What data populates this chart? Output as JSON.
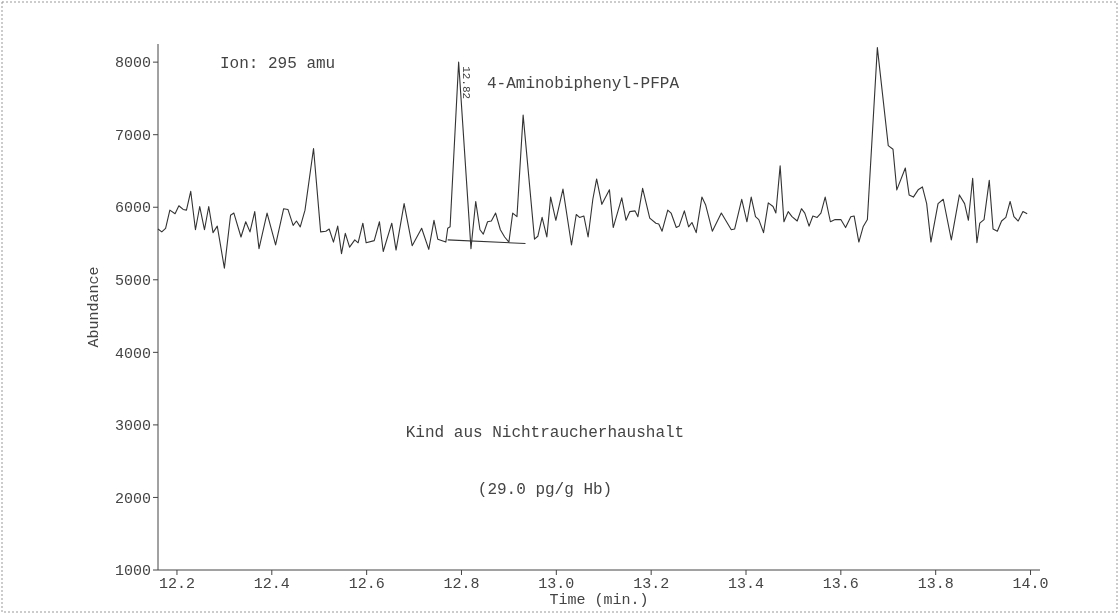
{
  "chart_data": {
    "type": "line",
    "title": "4-Aminobiphenyl-PFPA",
    "xlabel": "Time (min.)",
    "ylabel": "Abundance",
    "annotations": [
      "Ion: 295 amu",
      "Kind aus Nichtraucherhaushalt",
      "(29.0 pg/g Hb)",
      {
        "text": "12.82",
        "x": 12.794,
        "y": 8000
      }
    ],
    "xlim": [
      12.16,
      14.02
    ],
    "ylim": [
      1000,
      8250
    ],
    "xticks": [
      12.2,
      12.4,
      12.6,
      12.8,
      {
        "value": 13,
        "label": "13.0"
      },
      13.2,
      13.4,
      13.6,
      13.8,
      {
        "value": 14,
        "label": "14.0"
      }
    ],
    "yticks": [
      1000,
      2000,
      3000,
      4000,
      5000,
      6000,
      7000,
      8000
    ],
    "grid": false,
    "series": [
      {
        "color": "#333333",
        "x": [
          12.16,
          12.168,
          12.176,
          12.185,
          12.196,
          12.204,
          12.213,
          12.22,
          12.229,
          12.239,
          12.248,
          12.258,
          12.267,
          12.276,
          12.285,
          12.3,
          12.313,
          12.32,
          12.335,
          12.345,
          12.354,
          12.364,
          12.373,
          12.39,
          12.408,
          12.425,
          12.434,
          12.445,
          12.452,
          12.46,
          12.47,
          12.488,
          12.503,
          12.514,
          12.521,
          12.53,
          12.539,
          12.547,
          12.555,
          12.564,
          12.575,
          12.582,
          12.592,
          12.599,
          12.616,
          12.627,
          12.635,
          12.653,
          12.662,
          12.679,
          12.696,
          12.716,
          12.731,
          12.742,
          12.75,
          12.767,
          12.771,
          12.776,
          12.794,
          12.82,
          12.83,
          12.839,
          12.846,
          12.855,
          12.863,
          12.872,
          12.882,
          12.891,
          12.9,
          12.908,
          12.917,
          12.93,
          12.954,
          12.961,
          12.97,
          12.98,
          12.988,
          12.999,
          13.014,
          13.032,
          13.042,
          13.049,
          13.058,
          13.067,
          13.077,
          13.085,
          13.096,
          13.112,
          13.12,
          13.138,
          13.147,
          13.155,
          13.166,
          13.172,
          13.182,
          13.197,
          13.21,
          13.216,
          13.223,
          13.235,
          13.242,
          13.253,
          13.259,
          13.27,
          13.279,
          13.286,
          13.295,
          13.307,
          13.315,
          13.329,
          13.348,
          13.369,
          13.376,
          13.391,
          13.402,
          13.411,
          13.42,
          13.427,
          13.437,
          13.447,
          13.457,
          13.463,
          13.472,
          13.48,
          13.489,
          13.497,
          13.508,
          13.517,
          13.524,
          13.533,
          13.541,
          13.55,
          13.558,
          13.567,
          13.578,
          13.588,
          13.6,
          13.61,
          13.621,
          13.628,
          13.638,
          13.647,
          13.656,
          13.677,
          13.7,
          13.71,
          13.718,
          13.736,
          13.744,
          13.753,
          13.763,
          13.772,
          13.781,
          13.79,
          13.805,
          13.816,
          13.833,
          13.85,
          13.861,
          13.869,
          13.878,
          13.887,
          13.893,
          13.902,
          13.913,
          13.921,
          13.93,
          13.939,
          13.948,
          13.957,
          13.965,
          13.974,
          13.984,
          13.993
        ],
        "values": [
          5700,
          5660,
          5710,
          5960,
          5910,
          6020,
          5970,
          5960,
          6220,
          5690,
          6010,
          5690,
          6010,
          5650,
          5740,
          5160,
          5890,
          5920,
          5590,
          5800,
          5660,
          5940,
          5430,
          5920,
          5480,
          5980,
          5970,
          5750,
          5810,
          5730,
          5960,
          6810,
          5660,
          5670,
          5700,
          5520,
          5740,
          5360,
          5640,
          5450,
          5550,
          5510,
          5780,
          5510,
          5540,
          5800,
          5390,
          5780,
          5410,
          6050,
          5470,
          5710,
          5420,
          5820,
          5560,
          5520,
          5710,
          5730,
          8000,
          5430,
          6080,
          5690,
          5630,
          5800,
          5810,
          5920,
          5690,
          5590,
          5520,
          5920,
          5870,
          7270,
          5560,
          5600,
          5860,
          5590,
          6140,
          5820,
          6250,
          5480,
          5900,
          5860,
          5880,
          5590,
          6110,
          6390,
          6040,
          6240,
          5720,
          6130,
          5820,
          5940,
          5950,
          5870,
          6260,
          5850,
          5780,
          5770,
          5670,
          5960,
          5920,
          5720,
          5740,
          5950,
          5730,
          5790,
          5650,
          6140,
          6030,
          5670,
          5920,
          5690,
          5700,
          6110,
          5800,
          6140,
          5870,
          5830,
          5650,
          6060,
          6010,
          5920,
          6570,
          5800,
          5940,
          5870,
          5810,
          5980,
          5920,
          5740,
          5880,
          5860,
          5920,
          6140,
          5800,
          5830,
          5830,
          5720,
          5870,
          5880,
          5520,
          5730,
          5830,
          8200,
          6850,
          6800,
          6240,
          6540,
          6170,
          6140,
          6240,
          6280,
          6050,
          5520,
          6050,
          6110,
          5550,
          6170,
          6050,
          5820,
          6400,
          5510,
          5780,
          5830,
          6370,
          5700,
          5670,
          5810,
          5860,
          6080,
          5870,
          5810,
          5940,
          5910
        ]
      },
      {
        "type": "line",
        "color": "#333333",
        "x": [
          12.771,
          12.935
        ],
        "values": [
          5550,
          5500
        ]
      }
    ]
  }
}
